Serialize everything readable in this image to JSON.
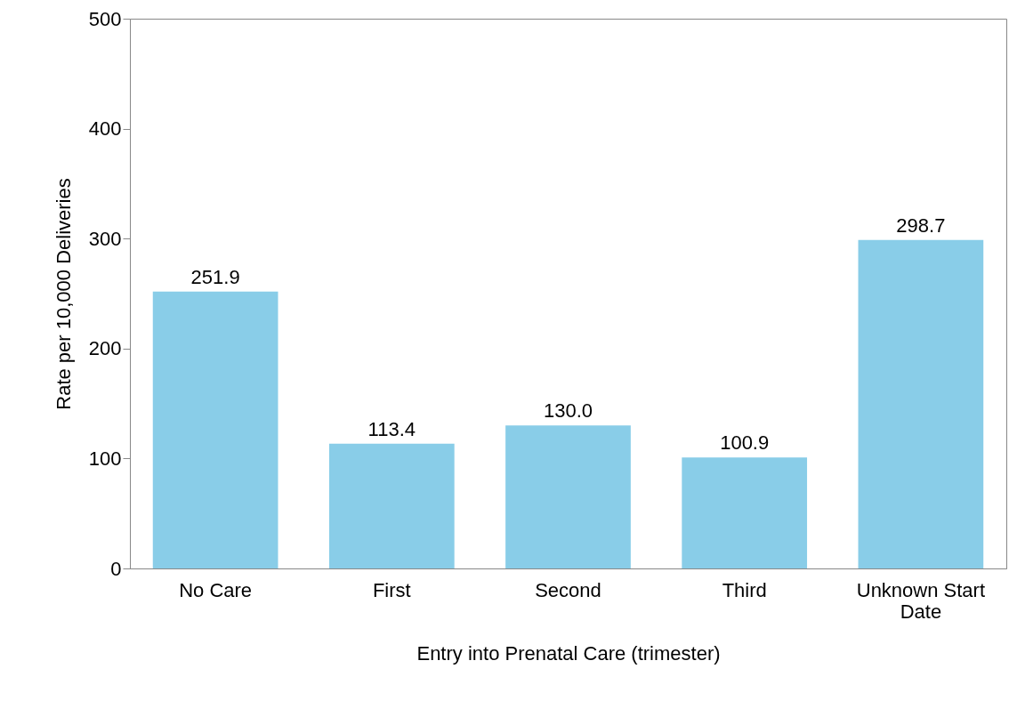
{
  "chart_data": {
    "type": "bar",
    "xlabel": "Entry into Prenatal Care (trimester)",
    "ylabel": "Rate per 10,000 Deliveries",
    "categories": [
      "No Care",
      "First",
      "Second",
      "Third",
      "Unknown Start Date"
    ],
    "values": [
      251.9,
      113.4,
      130.0,
      100.9,
      298.7
    ],
    "value_labels": [
      "251.9",
      "113.4",
      "130.0",
      "100.9",
      "298.7"
    ],
    "color": "#89cde8",
    "ylim": [
      0,
      500
    ],
    "yticks": [
      0,
      100,
      200,
      300,
      400,
      500
    ],
    "grid": false
  }
}
